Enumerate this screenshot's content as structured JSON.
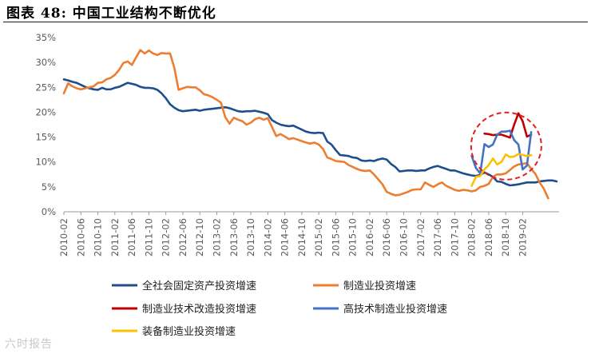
{
  "figure_title": "图表 48:   中国工业结构不断优化",
  "watermark": "六时报告",
  "chart_data": {
    "type": "line",
    "ylim": [
      0,
      35
    ],
    "y_ticks": [
      "0%",
      "5%",
      "10%",
      "15%",
      "20%",
      "25%",
      "30%",
      "35%"
    ],
    "x_tick_labels": [
      "2010-02",
      "2010-06",
      "2010-10",
      "2011-02",
      "2011-06",
      "2011-10",
      "2012-02",
      "2012-06",
      "2012-10",
      "2013-02",
      "2013-06",
      "2013-10",
      "2014-02",
      "2014-06",
      "2014-10",
      "2015-02",
      "2015-06",
      "2015-10",
      "2016-02",
      "2016-06",
      "2016-10",
      "2017-02",
      "2017-06",
      "2017-10",
      "2018-02",
      "2018-06",
      "2018-10",
      "2019-02"
    ],
    "x_start": "2010-02",
    "grid": false,
    "legend_position": "bottom",
    "series": [
      {
        "name": "全社会固定资产投资增速",
        "color": "#1f4e8c",
        "start": "2010-02",
        "values": [
          26.6,
          26.4,
          26.1,
          25.9,
          25.5,
          25.1,
          24.8,
          24.6,
          24.5,
          24.9,
          24.6,
          24.6,
          24.9,
          25.1,
          25.5,
          25.9,
          25.7,
          25.5,
          25.1,
          24.9,
          24.9,
          24.8,
          24.5,
          23.8,
          22.8,
          21.6,
          20.9,
          20.4,
          20.2,
          20.3,
          20.4,
          20.5,
          20.3,
          20.5,
          20.6,
          20.7,
          20.8,
          20.9,
          21.0,
          20.8,
          20.5,
          20.2,
          20.1,
          20.2,
          20.2,
          20.3,
          20.1,
          19.9,
          19.6,
          18.4,
          17.9,
          17.5,
          17.3,
          17.2,
          17.3,
          16.9,
          16.5,
          16.1,
          15.9,
          15.8,
          15.9,
          15.8,
          14.1,
          13.5,
          12.4,
          11.4,
          11.3,
          11.2,
          10.9,
          10.8,
          10.3,
          10.2,
          10.3,
          10.2,
          10.5,
          10.7,
          10.5,
          9.6,
          9.0,
          8.1,
          8.2,
          8.3,
          8.3,
          8.2,
          8.3,
          8.3,
          8.7,
          9.0,
          9.2,
          8.9,
          8.6,
          8.3,
          8.3,
          8.0,
          7.7,
          7.5,
          7.3,
          7.2,
          7.4,
          7.9,
          7.5,
          7.0,
          6.1,
          6.0,
          5.6,
          5.3,
          5.4,
          5.5,
          5.7,
          5.9,
          5.9,
          5.9,
          6.1,
          6.2,
          6.3,
          6.3,
          6.1
        ]
      },
      {
        "name": "制造业投资增速",
        "color": "#ed7d31",
        "start": "2010-02",
        "values": [
          23.8,
          25.8,
          25.2,
          24.8,
          24.6,
          24.8,
          25.0,
          25.2,
          25.9,
          26.0,
          26.6,
          26.9,
          27.5,
          28.5,
          29.9,
          30.2,
          29.5,
          31.0,
          32.5,
          31.8,
          32.4,
          31.8,
          31.5,
          31.9,
          31.8,
          31.8,
          28.9,
          24.5,
          24.8,
          25.1,
          25.0,
          25.0,
          24.4,
          23.6,
          23.4,
          23.0,
          22.5,
          21.9,
          19.0,
          17.7,
          18.9,
          18.5,
          18.2,
          17.5,
          17.9,
          18.6,
          18.9,
          18.5,
          18.8,
          17.0,
          15.2,
          15.6,
          15.1,
          14.6,
          14.8,
          14.5,
          14.2,
          13.9,
          13.7,
          13.9,
          13.5,
          12.6,
          10.9,
          10.6,
          10.2,
          10.1,
          10.0,
          9.4,
          9.0,
          8.6,
          8.3,
          8.2,
          8.3,
          7.5,
          6.5,
          5.5,
          4.0,
          3.6,
          3.3,
          3.4,
          3.7,
          4.0,
          4.4,
          4.5,
          4.5,
          5.9,
          5.4,
          5.0,
          5.5,
          5.9,
          5.2,
          4.8,
          4.4,
          4.2,
          4.4,
          4.3,
          4.1,
          4.3,
          5.0,
          5.2,
          5.6,
          7.0,
          7.5,
          7.5,
          7.7,
          8.4,
          9.1,
          9.5,
          9.6,
          9.8,
          8.6,
          7.6,
          5.9,
          4.6,
          2.7
        ]
      },
      {
        "name": "制造业技术改造投资增速",
        "color": "#c00000",
        "start": "2018-05",
        "values": [
          15.7,
          15.6,
          15.4,
          15.5,
          15.5,
          15.2,
          14.9,
          17.5,
          19.8,
          18.2,
          15.1,
          15.5
        ]
      },
      {
        "name": "高技术制造业投资增速",
        "color": "#4472c4",
        "start": "2018-02",
        "values": [
          11.2,
          8.8,
          7.7,
          13.6,
          13.0,
          13.5,
          15.5,
          16.1,
          16.1,
          16.3,
          14.4,
          13.5,
          8.5,
          9.3,
          16.0
        ]
      },
      {
        "name": "装备制造业投资增速",
        "color": "#ffc000",
        "start": "2018-02",
        "values": [
          5.2,
          7.0,
          7.2,
          8.5,
          9.4,
          10.7,
          9.5,
          10.0,
          11.5,
          11.0,
          11.1,
          11.6,
          11.4,
          11.2,
          11.4
        ]
      }
    ],
    "annotation": {
      "type": "dashed-circle",
      "color": "#e02020"
    }
  }
}
